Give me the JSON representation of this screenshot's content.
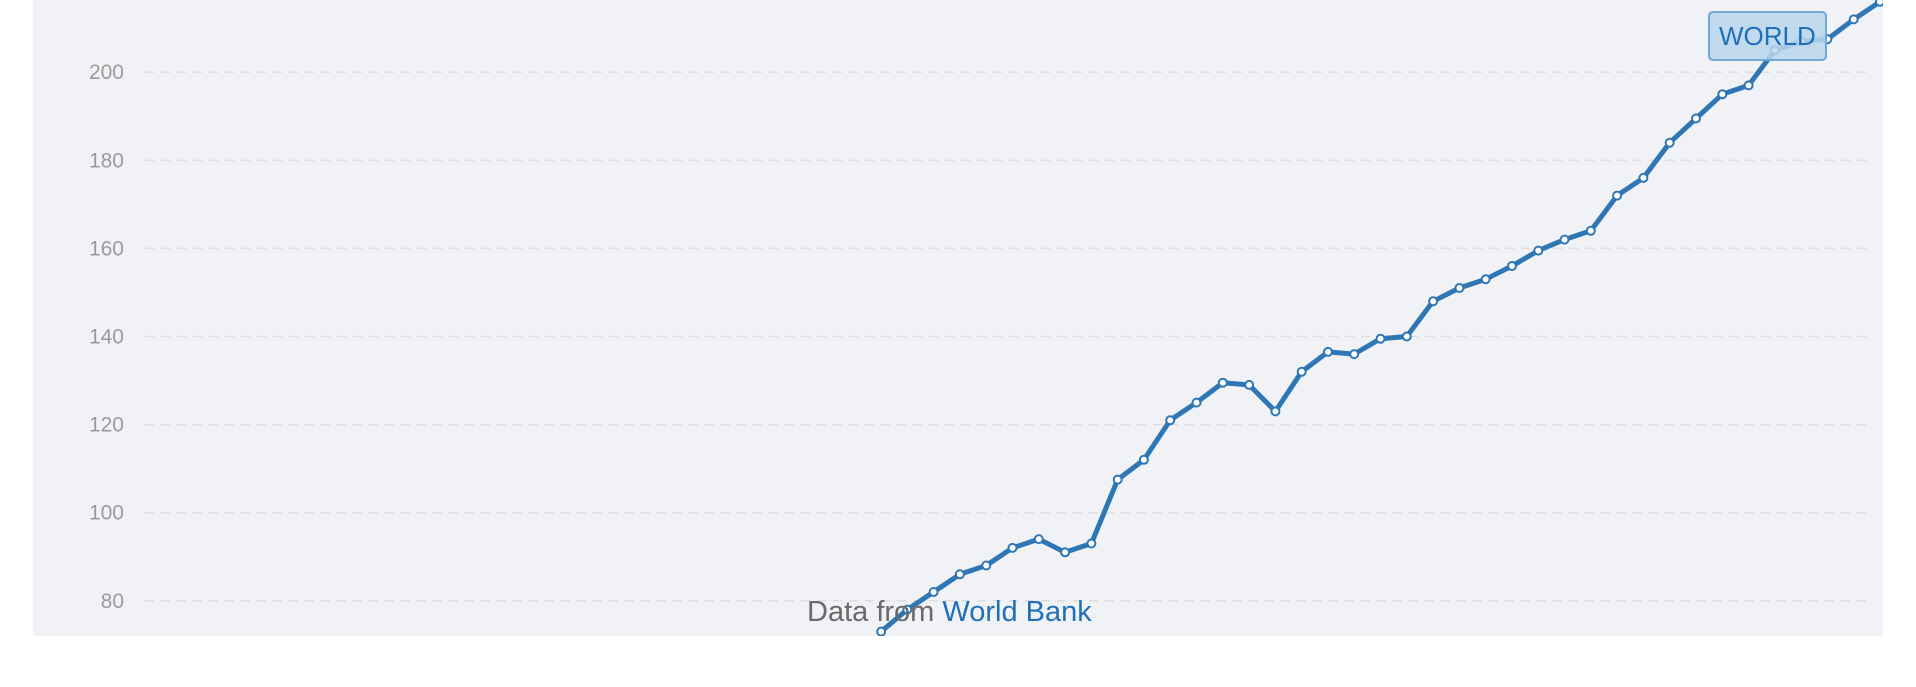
{
  "chart_data": {
    "type": "line",
    "title": "",
    "xlabel": "",
    "ylabel": "",
    "ylim": [
      72,
      216.4
    ],
    "y_ticks": [
      80,
      100,
      120,
      140,
      160,
      180,
      200
    ],
    "grid": true,
    "line_color": "#2f77b4",
    "series": [
      {
        "name": "WORLD",
        "x": [
          1,
          2,
          3,
          4,
          5,
          6,
          7,
          8,
          9,
          10,
          11,
          12,
          13,
          14,
          15,
          16,
          17,
          18,
          19,
          20,
          21,
          22,
          23,
          24,
          25,
          26,
          27,
          28,
          29,
          30,
          31,
          32,
          33,
          34,
          35,
          36,
          37,
          38,
          39,
          40,
          41,
          42,
          43,
          44,
          45,
          46,
          47,
          48,
          49,
          50,
          51,
          52,
          53,
          54,
          55,
          56,
          57,
          58,
          59,
          60,
          61,
          62,
          63,
          64,
          65,
          66,
          67
        ],
        "values": [
          null,
          null,
          null,
          null,
          null,
          null,
          null,
          null,
          null,
          null,
          null,
          null,
          null,
          null,
          null,
          null,
          null,
          null,
          null,
          null,
          null,
          null,
          null,
          null,
          null,
          null,
          null,
          null,
          73,
          78,
          82,
          86,
          88,
          92,
          94,
          91,
          93,
          107.5,
          112,
          121,
          125,
          129.5,
          129,
          123,
          132,
          136.5,
          136,
          139.5,
          140,
          148,
          151,
          153,
          156,
          159.5,
          162,
          164,
          172,
          176,
          184,
          189.5,
          195,
          197,
          205,
          207,
          207.5,
          212,
          216
        ]
      }
    ]
  },
  "attribution": {
    "prefix": "Data from ",
    "source": "World Bank"
  },
  "series_badge": "WORLD"
}
